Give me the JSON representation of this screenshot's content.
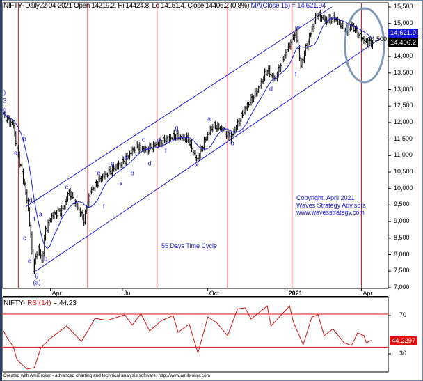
{
  "header": {
    "symbol": "NIFTY",
    "text": "- Daily22-04-2021 Open 14219.2, Hi 14424.8, Lo 14151.4, Close 14406.2 (0.8%)",
    "ma_text": "MA(Close,15) = 14,621.94"
  },
  "rsi_header": {
    "symbol": "NIFTY-",
    "indicator": "RSI(14)",
    "value_text": "= 44.23"
  },
  "footer": "Created with AmiBroker - advanced charting and technical analysis software. http://www.amibroker.com",
  "copyright": [
    "Copyright, April 2021",
    "Waves Strategy Advisors",
    "www.wavesstrategy.com"
  ],
  "cycle_label": "55 Days Time Cycle",
  "colors": {
    "price": "#000000",
    "ma": "#1a1adc",
    "cycle_line": "#c81414",
    "rsi": "#d21010",
    "channel": "#1a1adc",
    "ellipse": "#7f98b8"
  },
  "chart_data": [
    {
      "type": "line",
      "title": "NIFTY Daily",
      "y_ticks": [
        "15,500",
        "15,000",
        "14,500",
        "14,000",
        "13,500",
        "13,000",
        "12,500",
        "12,000",
        "11,500",
        "11,000",
        "10,500",
        "10,000",
        "9,500",
        "9,000",
        "8,500",
        "8,000",
        "7,500",
        "7,000"
      ],
      "ylim": [
        7000,
        15500
      ],
      "x_ticks": [
        {
          "label": "Apr",
          "bar": 38
        },
        {
          "label": "Jul",
          "bar": 96
        },
        {
          "label": "Oct",
          "bar": 165
        },
        {
          "label": "2021",
          "bar": 229,
          "bold": true
        },
        {
          "label": "Apr",
          "bar": 289
        }
      ],
      "bars_total": 300,
      "close_keypoints": [
        [
          0,
          12230
        ],
        [
          8,
          11910
        ],
        [
          11,
          11170
        ],
        [
          17,
          10120
        ],
        [
          20,
          9380
        ],
        [
          22,
          8540
        ],
        [
          24,
          7590
        ],
        [
          28,
          8220
        ],
        [
          31,
          7800
        ],
        [
          34,
          8750
        ],
        [
          39,
          9170
        ],
        [
          48,
          9380
        ],
        [
          53,
          9910
        ],
        [
          59,
          9490
        ],
        [
          65,
          9060
        ],
        [
          70,
          9910
        ],
        [
          79,
          10330
        ],
        [
          87,
          10540
        ],
        [
          98,
          10860
        ],
        [
          107,
          11280
        ],
        [
          115,
          11170
        ],
        [
          126,
          11390
        ],
        [
          138,
          11600
        ],
        [
          149,
          11490
        ],
        [
          156,
          10860
        ],
        [
          163,
          11490
        ],
        [
          169,
          11910
        ],
        [
          177,
          11800
        ],
        [
          183,
          11490
        ],
        [
          194,
          12340
        ],
        [
          205,
          12970
        ],
        [
          213,
          13600
        ],
        [
          219,
          13290
        ],
        [
          228,
          14130
        ],
        [
          236,
          14760
        ],
        [
          240,
          13710
        ],
        [
          244,
          14230
        ],
        [
          253,
          15290
        ],
        [
          261,
          15080
        ],
        [
          267,
          15180
        ],
        [
          272,
          14970
        ],
        [
          278,
          14760
        ],
        [
          281,
          14970
        ],
        [
          287,
          14660
        ],
        [
          292,
          14450
        ],
        [
          298,
          14406
        ]
      ],
      "last_close": "14,406.2",
      "ma_value": "14,621.9",
      "ma_period": 15,
      "cycle_lines_bars": [
        12,
        68,
        124,
        181,
        233,
        289
      ],
      "channel": {
        "upper": [
          [
            18,
            9450
          ],
          [
            265,
            15500
          ]
        ],
        "lower": [
          [
            26,
            7500
          ],
          [
            305,
            14560
          ]
        ]
      },
      "wave_labels": [
        [
          ")",
          1,
          12900
        ],
        [
          "3",
          1,
          12650
        ],
        [
          "g",
          1,
          12380
        ],
        [
          "a",
          10,
          11070
        ],
        [
          "b",
          17,
          11490
        ],
        [
          "d",
          22,
          9630
        ],
        [
          "f",
          25,
          9060
        ],
        [
          "c",
          17,
          8490
        ],
        [
          "a",
          30,
          9210
        ],
        [
          "e",
          21,
          7800
        ],
        [
          "g",
          27,
          7380
        ],
        [
          "(a)",
          27,
          7140
        ],
        [
          "b",
          34,
          7860
        ],
        [
          "c",
          51,
          10030
        ],
        [
          "e",
          77,
          10460
        ],
        [
          "f",
          81,
          9440
        ],
        [
          "g",
          88,
          10750
        ],
        [
          "x",
          95,
          10140
        ],
        [
          "a",
          99,
          10940
        ],
        [
          "b",
          104,
          10460
        ],
        [
          "c",
          113,
          11470
        ],
        [
          "d",
          118,
          10750
        ],
        [
          "e",
          125,
          11450
        ],
        [
          "f",
          131,
          11130
        ],
        [
          "g",
          140,
          11830
        ],
        [
          "x",
          156,
          10710
        ],
        [
          "a",
          166,
          12100
        ],
        [
          "c",
          183,
          11640
        ],
        [
          "b",
          185,
          11360
        ],
        [
          "d",
          216,
          13010
        ],
        [
          "e",
          238,
          14870
        ],
        [
          "f",
          236,
          13450
        ]
      ]
    },
    {
      "type": "line",
      "title": "RSI(14)",
      "y_ticks": [
        "70",
        "30"
      ],
      "ref_lines": [
        71.5,
        37
      ],
      "last_value": "44.2297",
      "points": [
        [
          0,
          54
        ],
        [
          3,
          46.7
        ],
        [
          8,
          37.3
        ],
        [
          11,
          23.5
        ],
        [
          19,
          14
        ],
        [
          25,
          15.5
        ],
        [
          30,
          35.8
        ],
        [
          37,
          45.3
        ],
        [
          51,
          59
        ],
        [
          63,
          43
        ],
        [
          74,
          67
        ],
        [
          84,
          65
        ],
        [
          98,
          70.7
        ],
        [
          104,
          60
        ],
        [
          111,
          72
        ],
        [
          118,
          54
        ],
        [
          128,
          65
        ],
        [
          137,
          70
        ],
        [
          141,
          52.5
        ],
        [
          150,
          61
        ],
        [
          157,
          30.7
        ],
        [
          165,
          68.5
        ],
        [
          172,
          62.7
        ],
        [
          181,
          49
        ],
        [
          189,
          77
        ],
        [
          195,
          78
        ],
        [
          200,
          66.4
        ],
        [
          213,
          80
        ],
        [
          216,
          59
        ],
        [
          231,
          80
        ],
        [
          234,
          63.5
        ],
        [
          242,
          39.5
        ],
        [
          249,
          68.5
        ],
        [
          254,
          70.7
        ],
        [
          259,
          49
        ],
        [
          266,
          56
        ],
        [
          275,
          41.6
        ],
        [
          281,
          38.7
        ],
        [
          286,
          51.8
        ],
        [
          291,
          49
        ],
        [
          293,
          41.6
        ],
        [
          297,
          44.2
        ]
      ]
    }
  ]
}
